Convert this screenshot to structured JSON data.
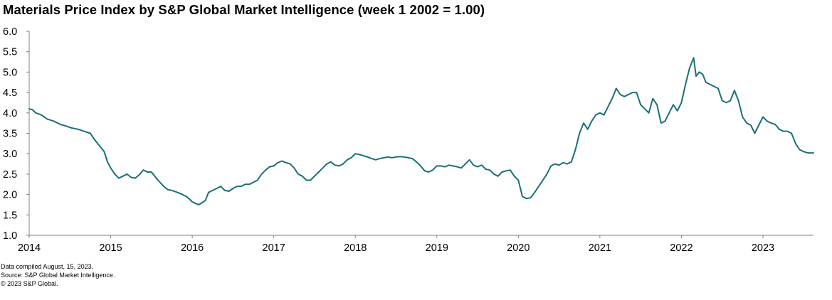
{
  "chart_data": {
    "type": "line",
    "title": "Materials Price Index by S&P Global Market Intelligence (week 1 2002 = 1.00)",
    "xlabel": "",
    "ylabel": "",
    "xlim": [
      2014.0,
      2023.62
    ],
    "ylim": [
      1.0,
      6.0
    ],
    "y_ticks": [
      "1.0",
      "1.5",
      "2.0",
      "2.5",
      "3.0",
      "3.5",
      "4.0",
      "4.5",
      "5.0",
      "5.5",
      "6.0"
    ],
    "x_ticks": [
      "2014",
      "2015",
      "2016",
      "2017",
      "2018",
      "2019",
      "2020",
      "2021",
      "2022",
      "2023"
    ],
    "grid": false,
    "legend": "none",
    "line_color": "#1a6f78",
    "series": [
      {
        "name": "Materials Price Index",
        "x": [
          2014.0,
          2014.04,
          2014.08,
          2014.15,
          2014.22,
          2014.3,
          2014.38,
          2014.45,
          2014.52,
          2014.6,
          2014.67,
          2014.75,
          2014.8,
          2014.86,
          2014.92,
          2014.96,
          2015.0,
          2015.05,
          2015.1,
          2015.15,
          2015.2,
          2015.25,
          2015.3,
          2015.35,
          2015.4,
          2015.45,
          2015.5,
          2015.58,
          2015.65,
          2015.7,
          2015.75,
          2015.82,
          2015.88,
          2015.93,
          2015.97,
          2016.0,
          2016.04,
          2016.08,
          2016.12,
          2016.16,
          2016.2,
          2016.25,
          2016.3,
          2016.35,
          2016.4,
          2016.45,
          2016.5,
          2016.55,
          2016.6,
          2016.65,
          2016.7,
          2016.75,
          2016.8,
          2016.85,
          2016.9,
          2016.95,
          2017.0,
          2017.05,
          2017.1,
          2017.15,
          2017.2,
          2017.25,
          2017.3,
          2017.35,
          2017.4,
          2017.45,
          2017.5,
          2017.55,
          2017.6,
          2017.65,
          2017.7,
          2017.75,
          2017.8,
          2017.85,
          2017.9,
          2017.95,
          2018.0,
          2018.05,
          2018.1,
          2018.15,
          2018.2,
          2018.25,
          2018.3,
          2018.35,
          2018.4,
          2018.45,
          2018.5,
          2018.55,
          2018.6,
          2018.65,
          2018.7,
          2018.75,
          2018.8,
          2018.85,
          2018.9,
          2018.95,
          2019.0,
          2019.05,
          2019.1,
          2019.15,
          2019.2,
          2019.25,
          2019.3,
          2019.35,
          2019.4,
          2019.45,
          2019.5,
          2019.55,
          2019.6,
          2019.65,
          2019.7,
          2019.75,
          2019.8,
          2019.85,
          2019.9,
          2019.95,
          2020.0,
          2020.05,
          2020.1,
          2020.15,
          2020.2,
          2020.25,
          2020.3,
          2020.35,
          2020.4,
          2020.45,
          2020.5,
          2020.55,
          2020.6,
          2020.65,
          2020.7,
          2020.75,
          2020.8,
          2020.85,
          2020.9,
          2020.95,
          2021.0,
          2021.05,
          2021.1,
          2021.15,
          2021.2,
          2021.25,
          2021.3,
          2021.35,
          2021.4,
          2021.45,
          2021.5,
          2021.55,
          2021.6,
          2021.65,
          2021.7,
          2021.75,
          2021.8,
          2021.85,
          2021.9,
          2021.95,
          2022.0,
          2022.05,
          2022.1,
          2022.15,
          2022.18,
          2022.22,
          2022.26,
          2022.3,
          2022.35,
          2022.4,
          2022.45,
          2022.5,
          2022.55,
          2022.6,
          2022.65,
          2022.7,
          2022.75,
          2022.8,
          2022.85,
          2022.9,
          2022.95,
          2023.0,
          2023.05,
          2023.1,
          2023.15,
          2023.2,
          2023.25,
          2023.3,
          2023.35,
          2023.4,
          2023.45,
          2023.5,
          2023.55,
          2023.62
        ],
        "values": [
          4.1,
          4.08,
          4.0,
          3.95,
          3.85,
          3.8,
          3.72,
          3.68,
          3.63,
          3.6,
          3.55,
          3.5,
          3.35,
          3.2,
          3.05,
          2.8,
          2.65,
          2.5,
          2.4,
          2.45,
          2.5,
          2.42,
          2.4,
          2.48,
          2.6,
          2.55,
          2.55,
          2.35,
          2.2,
          2.12,
          2.1,
          2.05,
          2.0,
          1.95,
          1.88,
          1.82,
          1.78,
          1.75,
          1.8,
          1.85,
          2.05,
          2.1,
          2.15,
          2.2,
          2.1,
          2.08,
          2.15,
          2.2,
          2.2,
          2.25,
          2.25,
          2.3,
          2.35,
          2.5,
          2.6,
          2.68,
          2.7,
          2.78,
          2.82,
          2.78,
          2.75,
          2.65,
          2.5,
          2.45,
          2.35,
          2.35,
          2.45,
          2.55,
          2.65,
          2.75,
          2.8,
          2.72,
          2.7,
          2.75,
          2.85,
          2.9,
          3.0,
          2.98,
          2.95,
          2.92,
          2.88,
          2.85,
          2.88,
          2.9,
          2.92,
          2.9,
          2.92,
          2.93,
          2.92,
          2.9,
          2.88,
          2.8,
          2.7,
          2.58,
          2.55,
          2.6,
          2.7,
          2.7,
          2.68,
          2.72,
          2.7,
          2.68,
          2.65,
          2.75,
          2.85,
          2.72,
          2.68,
          2.72,
          2.62,
          2.6,
          2.5,
          2.45,
          2.55,
          2.58,
          2.6,
          2.45,
          2.35,
          1.95,
          1.9,
          1.92,
          2.05,
          2.2,
          2.35,
          2.5,
          2.7,
          2.75,
          2.72,
          2.78,
          2.75,
          2.8,
          3.1,
          3.5,
          3.75,
          3.6,
          3.8,
          3.95,
          4.0,
          3.95,
          4.15,
          4.35,
          4.6,
          4.45,
          4.4,
          4.45,
          4.5,
          4.5,
          4.2,
          4.1,
          4.0,
          4.35,
          4.2,
          3.75,
          3.8,
          4.0,
          4.2,
          4.05,
          4.25,
          4.7,
          5.1,
          5.35,
          4.9,
          5.0,
          4.95,
          4.75,
          4.7,
          4.65,
          4.6,
          4.3,
          4.25,
          4.3,
          4.55,
          4.3,
          3.9,
          3.75,
          3.7,
          3.5,
          3.7,
          3.9,
          3.8,
          3.75,
          3.72,
          3.6,
          3.55,
          3.55,
          3.5,
          3.25,
          3.1,
          3.05,
          3.02,
          3.02
        ]
      }
    ]
  },
  "footnotes": {
    "compiled": "Data compiled August, 15, 2023.",
    "source": "Source: S&P Global Market Intelligence.",
    "copyright": "© 2023 S&P Global."
  }
}
